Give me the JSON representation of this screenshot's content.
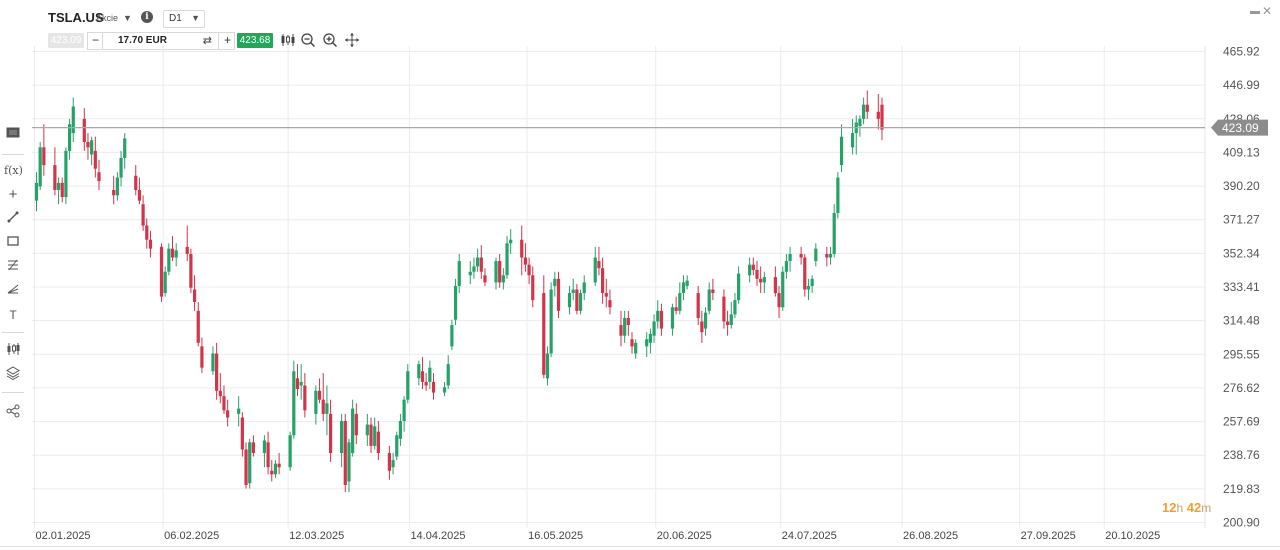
{
  "header": {
    "symbol": "TSLA.US",
    "instrument_type": "Akcie",
    "timeframe": "D1",
    "bid_price": "423.09",
    "quantity": "17.70 EUR",
    "ask_price": "423.68"
  },
  "timer": {
    "hours": "12",
    "hours_unit": "h",
    "minutes": "42",
    "minutes_unit": "m"
  },
  "colors": {
    "up": "#26a269",
    "down": "#d2344a",
    "grid": "#ececec",
    "price_line": "#a9a9a9",
    "price_tag": "#8c8c8c"
  },
  "icons": [
    "info-icon",
    "chart-type-icon",
    "zoom-out-icon",
    "zoom-in-icon",
    "move-icon",
    "window-icon",
    "close-icon",
    "display-icon",
    "indicator-icon",
    "crosshair-icon",
    "line-tool-icon",
    "rectangle-tool-icon",
    "fibonacci-icon",
    "pitchfork-icon",
    "text-tool-icon",
    "candles-icon",
    "layers-icon",
    "share-icon"
  ],
  "chart_data": {
    "type": "candlestick",
    "symbol": "TSLA.US",
    "timeframe": "D1",
    "last_price": 423.09,
    "last_price_label": "423.09",
    "y_tick_labels": [
      "465.92",
      "446.99",
      "428.06",
      "409.13",
      "390.20",
      "371.27",
      "352.34",
      "333.41",
      "314.48",
      "295.55",
      "276.62",
      "257.69",
      "238.76",
      "219.83",
      "200.90"
    ],
    "x_tick_labels": [
      "02.01.2025",
      "06.02.2025",
      "12.03.2025",
      "14.04.2025",
      "16.05.2025",
      "20.06.2025",
      "24.07.2025",
      "26.08.2025",
      "27.09.2025",
      "20.10.2025"
    ],
    "x_tick_days": [
      0,
      35,
      69,
      102,
      134,
      169,
      203,
      236,
      268,
      291
    ],
    "ylim": [
      200.9,
      465.92
    ],
    "grid": true,
    "candles": [
      [
        0,
        382,
        398,
        376,
        392
      ],
      [
        1,
        390,
        415,
        388,
        412
      ],
      [
        2,
        412,
        425,
        396,
        402
      ],
      [
        5,
        402,
        412,
        385,
        388
      ],
      [
        6,
        388,
        395,
        380,
        392
      ],
      [
        7,
        392,
        395,
        381,
        384
      ],
      [
        8,
        384,
        412,
        380,
        410
      ],
      [
        9,
        410,
        428,
        405,
        425
      ],
      [
        10,
        420,
        440,
        415,
        435
      ],
      [
        13,
        428,
        434,
        410,
        415
      ],
      [
        14,
        415,
        420,
        405,
        412
      ],
      [
        15,
        408,
        418,
        402,
        416
      ],
      [
        16,
        410,
        418,
        395,
        400
      ],
      [
        17,
        398,
        405,
        388,
        393
      ],
      [
        21,
        388,
        396,
        380,
        385
      ],
      [
        22,
        385,
        398,
        382,
        395
      ],
      [
        23,
        395,
        410,
        390,
        406
      ],
      [
        24,
        406,
        420,
        400,
        417
      ],
      [
        27,
        396,
        402,
        385,
        388
      ],
      [
        28,
        388,
        395,
        380,
        382
      ],
      [
        29,
        380,
        385,
        365,
        368
      ],
      [
        30,
        368,
        372,
        355,
        360
      ],
      [
        31,
        360,
        365,
        350,
        355
      ],
      [
        34,
        356,
        358,
        325,
        328
      ],
      [
        35,
        330,
        345,
        328,
        342
      ],
      [
        36,
        342,
        358,
        340,
        355
      ],
      [
        37,
        355,
        362,
        348,
        350
      ],
      [
        38,
        350,
        358,
        345,
        354
      ],
      [
        41,
        356,
        368,
        348,
        352
      ],
      [
        42,
        352,
        355,
        330,
        333
      ],
      [
        43,
        332,
        340,
        320,
        325
      ],
      [
        44,
        320,
        325,
        300,
        302
      ],
      [
        45,
        300,
        305,
        285,
        288
      ],
      [
        48,
        286,
        300,
        284,
        296
      ],
      [
        49,
        296,
        302,
        270,
        275
      ],
      [
        50,
        275,
        285,
        268,
        272
      ],
      [
        51,
        272,
        278,
        262,
        264
      ],
      [
        52,
        264,
        270,
        255,
        260
      ],
      [
        55,
        262,
        272,
        255,
        265
      ],
      [
        56,
        260,
        263,
        238,
        242
      ],
      [
        57,
        242,
        246,
        220,
        222
      ],
      [
        58,
        223,
        248,
        220,
        246
      ],
      [
        59,
        246,
        250,
        238,
        240
      ],
      [
        62,
        240,
        250,
        232,
        247
      ],
      [
        63,
        246,
        252,
        228,
        232
      ],
      [
        64,
        230,
        236,
        224,
        228
      ],
      [
        65,
        228,
        236,
        226,
        234
      ],
      [
        66,
        234,
        240,
        228,
        232
      ],
      [
        69,
        232,
        252,
        230,
        250
      ],
      [
        70,
        250,
        292,
        248,
        286
      ],
      [
        71,
        282,
        290,
        272,
        276
      ],
      [
        72,
        278,
        290,
        270,
        280
      ],
      [
        73,
        278,
        285,
        260,
        264
      ],
      [
        76,
        262,
        278,
        256,
        275
      ],
      [
        77,
        275,
        282,
        268,
        270
      ],
      [
        78,
        270,
        285,
        258,
        262
      ],
      [
        79,
        262,
        278,
        250,
        268
      ],
      [
        80,
        262,
        270,
        235,
        240
      ],
      [
        83,
        240,
        262,
        232,
        258
      ],
      [
        84,
        258,
        262,
        218,
        222
      ],
      [
        85,
        224,
        248,
        218,
        246
      ],
      [
        86,
        240,
        270,
        238,
        265
      ],
      [
        87,
        262,
        268,
        245,
        250
      ],
      [
        90,
        250,
        262,
        244,
        256
      ],
      [
        91,
        256,
        260,
        240,
        244
      ],
      [
        92,
        244,
        260,
        242,
        255
      ],
      [
        93,
        252,
        258,
        236,
        240
      ],
      [
        96,
        240,
        244,
        225,
        230
      ],
      [
        97,
        232,
        240,
        228,
        236
      ],
      [
        98,
        238,
        252,
        236,
        250
      ],
      [
        99,
        248,
        262,
        244,
        258
      ],
      [
        100,
        258,
        272,
        252,
        270
      ],
      [
        101,
        270,
        290,
        268,
        286
      ],
      [
        104,
        282,
        292,
        278,
        290
      ],
      [
        105,
        286,
        294,
        276,
        280
      ],
      [
        106,
        280,
        285,
        275,
        278
      ],
      [
        107,
        280,
        292,
        276,
        288
      ],
      [
        108,
        280,
        285,
        270,
        274
      ],
      [
        111,
        274,
        280,
        272,
        277
      ],
      [
        112,
        278,
        295,
        276,
        290
      ],
      [
        113,
        300,
        315,
        298,
        312
      ],
      [
        114,
        315,
        338,
        312,
        334
      ],
      [
        115,
        334,
        352,
        330,
        348
      ],
      [
        118,
        340,
        348,
        335,
        342
      ],
      [
        119,
        342,
        350,
        338,
        345
      ],
      [
        120,
        345,
        355,
        342,
        350
      ],
      [
        121,
        350,
        357,
        338,
        342
      ],
      [
        122,
        340,
        344,
        334,
        336
      ],
      [
        125,
        336,
        350,
        332,
        348
      ],
      [
        126,
        348,
        352,
        333,
        336
      ],
      [
        127,
        336,
        344,
        332,
        340
      ],
      [
        128,
        340,
        362,
        338,
        358
      ],
      [
        129,
        358,
        366,
        352,
        360
      ],
      [
        132,
        360,
        368,
        340,
        350
      ],
      [
        133,
        350,
        358,
        342,
        346
      ],
      [
        134,
        346,
        350,
        335,
        340
      ],
      [
        135,
        340,
        345,
        322,
        326
      ],
      [
        138,
        330,
        340,
        282,
        284
      ],
      [
        139,
        282,
        300,
        278,
        296
      ],
      [
        140,
        296,
        336,
        294,
        332
      ],
      [
        141,
        334,
        342,
        328,
        338
      ],
      [
        142,
        338,
        342,
        316,
        320
      ],
      [
        145,
        322,
        334,
        318,
        330
      ],
      [
        146,
        330,
        338,
        326,
        332
      ],
      [
        147,
        332,
        335,
        318,
        320
      ],
      [
        148,
        320,
        332,
        318,
        330
      ],
      [
        149,
        330,
        340,
        326,
        336
      ],
      [
        152,
        336,
        356,
        334,
        350
      ],
      [
        153,
        348,
        356,
        340,
        344
      ],
      [
        154,
        344,
        350,
        324,
        330
      ],
      [
        155,
        330,
        338,
        322,
        328
      ],
      [
        156,
        326,
        332,
        318,
        322
      ],
      [
        159,
        312,
        320,
        300,
        306
      ],
      [
        160,
        306,
        320,
        302,
        316
      ],
      [
        161,
        316,
        320,
        306,
        312
      ],
      [
        162,
        304,
        308,
        296,
        300
      ],
      [
        163,
        296,
        304,
        293,
        302
      ],
      [
        166,
        300,
        308,
        294,
        304
      ],
      [
        167,
        302,
        310,
        296,
        307
      ],
      [
        168,
        306,
        318,
        302,
        314
      ],
      [
        169,
        314,
        326,
        310,
        320
      ],
      [
        170,
        320,
        324,
        306,
        310
      ],
      [
        173,
        310,
        324,
        306,
        322
      ],
      [
        174,
        322,
        328,
        318,
        320
      ],
      [
        175,
        320,
        336,
        318,
        330
      ],
      [
        176,
        330,
        340,
        326,
        336
      ],
      [
        177,
        334,
        340,
        332,
        337
      ],
      [
        180,
        330,
        334,
        312,
        316
      ],
      [
        181,
        314,
        320,
        302,
        308
      ],
      [
        182,
        310,
        322,
        306,
        319
      ],
      [
        183,
        320,
        336,
        318,
        332
      ],
      [
        184,
        332,
        338,
        326,
        330
      ],
      [
        187,
        328,
        332,
        310,
        314
      ],
      [
        188,
        314,
        320,
        306,
        312
      ],
      [
        189,
        312,
        325,
        310,
        318
      ],
      [
        190,
        318,
        330,
        316,
        326
      ],
      [
        191,
        326,
        345,
        324,
        341
      ],
      [
        194,
        340,
        350,
        336,
        346
      ],
      [
        195,
        346,
        350,
        340,
        343
      ],
      [
        196,
        343,
        348,
        334,
        338
      ],
      [
        197,
        338,
        345,
        330,
        336
      ],
      [
        198,
        336,
        342,
        330,
        339
      ],
      [
        201,
        339,
        345,
        328,
        330
      ],
      [
        202,
        330,
        334,
        316,
        322
      ],
      [
        203,
        322,
        345,
        320,
        342
      ],
      [
        204,
        342,
        352,
        338,
        348
      ],
      [
        205,
        348,
        356,
        342,
        352
      ],
      [
        208,
        352,
        356,
        346,
        350
      ],
      [
        209,
        350,
        352,
        328,
        332
      ],
      [
        210,
        332,
        338,
        326,
        334
      ],
      [
        211,
        334,
        340,
        330,
        338
      ],
      [
        212,
        348,
        358,
        345,
        355
      ],
      [
        215,
        352,
        356,
        345,
        350
      ],
      [
        216,
        350,
        356,
        346,
        352
      ],
      [
        217,
        352,
        380,
        350,
        375
      ],
      [
        218,
        375,
        398,
        372,
        395
      ],
      [
        219,
        402,
        425,
        398,
        418
      ],
      [
        222,
        412,
        428,
        408,
        420
      ],
      [
        223,
        420,
        430,
        408,
        426
      ],
      [
        224,
        424,
        430,
        418,
        428
      ],
      [
        225,
        428,
        440,
        425,
        436
      ],
      [
        226,
        436,
        444,
        428,
        432
      ],
      [
        229,
        432,
        442,
        422,
        428
      ],
      [
        230,
        436,
        440,
        416,
        422
      ]
    ]
  }
}
